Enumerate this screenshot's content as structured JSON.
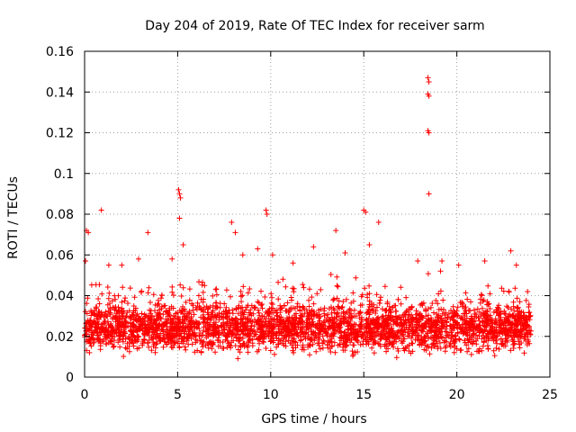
{
  "chart_data": {
    "type": "scatter",
    "title": "Day 204 of 2019, Rate Of TEC Index for receiver sarm",
    "xlabel": "GPS time / hours",
    "ylabel": "ROTI / TECUs",
    "xlim": [
      0,
      25
    ],
    "ylim": [
      0,
      0.16
    ],
    "xticks": [
      0,
      5,
      10,
      15,
      20,
      25
    ],
    "xtick_labels": [
      "0",
      "5",
      "10",
      "15",
      "20",
      "25"
    ],
    "yticks": [
      0,
      0.02,
      0.04,
      0.06,
      0.08,
      0.1,
      0.12,
      0.14,
      0.16
    ],
    "ytick_labels": [
      "0",
      "0.02",
      "0.04",
      "0.06",
      "0.08",
      "0.1",
      "0.12",
      "0.14",
      "0.16"
    ],
    "grid": true,
    "marker": "plus",
    "series": [
      {
        "name": "ROTI",
        "color": "#ff0000",
        "points": [
          [
            0.05,
            0.057
          ],
          [
            0.1,
            0.072
          ],
          [
            0.2,
            0.071
          ],
          [
            0.9,
            0.082
          ],
          [
            1.3,
            0.055
          ],
          [
            2.0,
            0.055
          ],
          [
            2.9,
            0.058
          ],
          [
            3.4,
            0.071
          ],
          [
            4.7,
            0.058
          ],
          [
            5.05,
            0.092
          ],
          [
            5.1,
            0.09
          ],
          [
            5.15,
            0.088
          ],
          [
            5.1,
            0.078
          ],
          [
            5.3,
            0.065
          ],
          [
            7.9,
            0.076
          ],
          [
            8.1,
            0.071
          ],
          [
            8.5,
            0.06
          ],
          [
            9.3,
            0.063
          ],
          [
            9.75,
            0.082
          ],
          [
            9.8,
            0.08
          ],
          [
            10.1,
            0.06
          ],
          [
            11.2,
            0.056
          ],
          [
            12.3,
            0.064
          ],
          [
            13.5,
            0.072
          ],
          [
            14.0,
            0.061
          ],
          [
            15.0,
            0.082
          ],
          [
            15.1,
            0.081
          ],
          [
            15.3,
            0.065
          ],
          [
            15.8,
            0.076
          ],
          [
            17.9,
            0.057
          ],
          [
            18.45,
            0.147
          ],
          [
            18.5,
            0.145
          ],
          [
            18.45,
            0.139
          ],
          [
            18.5,
            0.138
          ],
          [
            18.45,
            0.121
          ],
          [
            18.5,
            0.12
          ],
          [
            18.5,
            0.09
          ],
          [
            19.2,
            0.057
          ],
          [
            20.1,
            0.055
          ],
          [
            21.5,
            0.057
          ],
          [
            22.9,
            0.062
          ],
          [
            23.2,
            0.055
          ],
          [
            23.8,
            0.042
          ]
        ],
        "dense_band": {
          "x_range": [
            0,
            24
          ],
          "typical_range": [
            0.008,
            0.04
          ],
          "median": 0.02
        }
      }
    ]
  }
}
